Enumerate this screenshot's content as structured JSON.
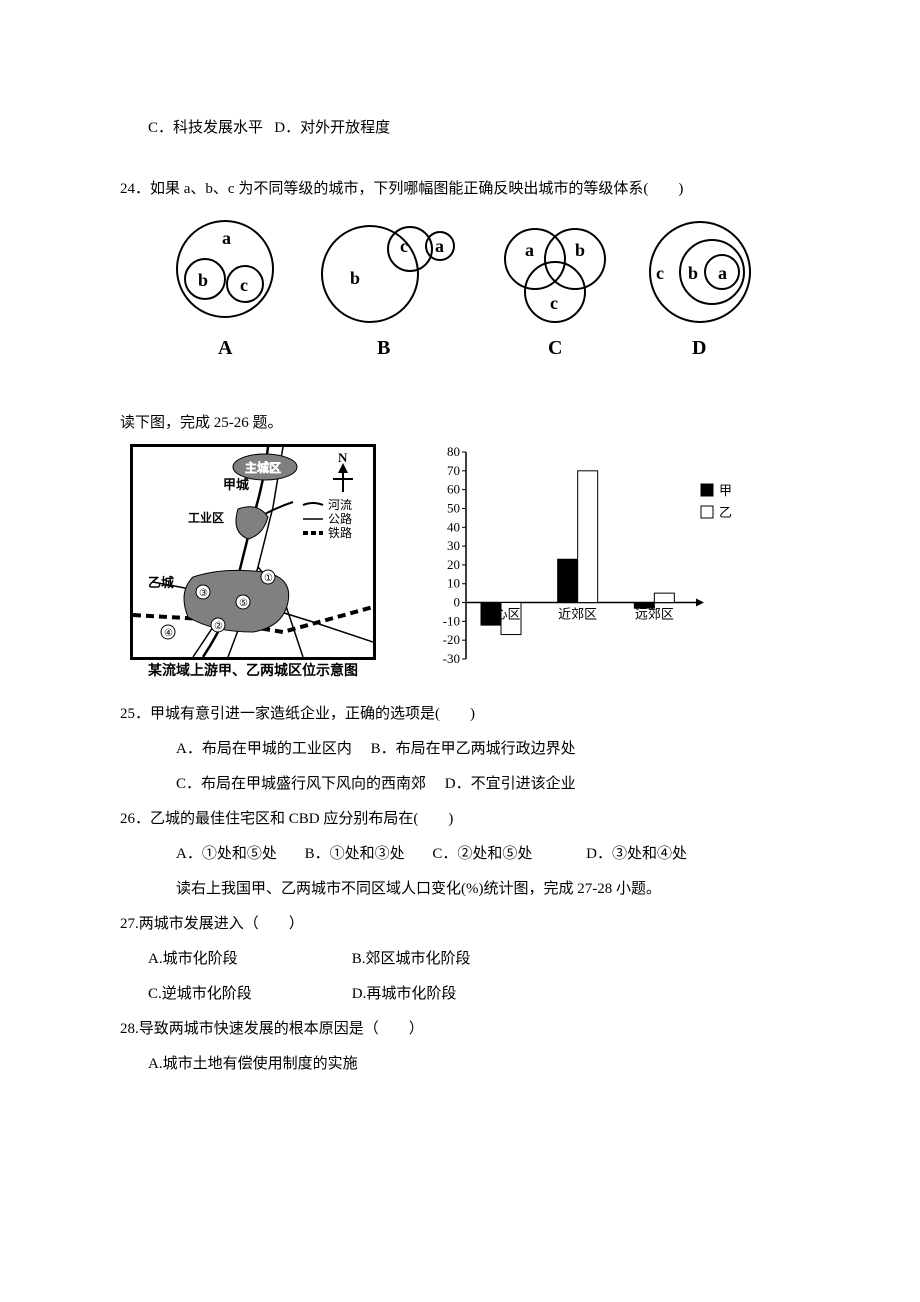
{
  "q23_tail": {
    "c": "C．科技发展水平",
    "d": "D．对外开放程度"
  },
  "q24": {
    "stem": "24．如果 a、b、c 为不同等级的城市，下列哪幅图能正确反映出城市的等级体系(　　)",
    "labels": {
      "A": "A",
      "B": "B",
      "C": "C",
      "D": "D"
    },
    "glyphs": {
      "a": "a",
      "b": "b",
      "c": "c"
    }
  },
  "intro25": "读下图，完成 25-26 题。",
  "map": {
    "main_area": "主城区",
    "city_jia": "甲城",
    "industrial": "工业区",
    "city_yi": "乙城",
    "north": "N",
    "legend": {
      "river": "河流",
      "road": "公路",
      "rail": "铁路"
    },
    "nodes": {
      "1": "①",
      "2": "②",
      "3": "③",
      "4": "④",
      "5": "⑤"
    },
    "caption": "某流域上游甲、乙两城区位示意图"
  },
  "chart": {
    "type": "bar",
    "categories": [
      "中心区",
      "近郊区",
      "远郊区"
    ],
    "series": [
      {
        "name": "甲",
        "values": [
          -12,
          23,
          -3
        ],
        "color": "#000000"
      },
      {
        "name": "乙",
        "values": [
          -17,
          70,
          5
        ],
        "color": "#ffffff"
      }
    ],
    "ylim": [
      -30,
      80
    ],
    "ytick_step": 10,
    "axis_color": "#000000",
    "bar_border": "#000000",
    "label_fontsize": 13,
    "legend": {
      "jia": "甲",
      "yi": "乙"
    }
  },
  "q25": {
    "stem": "25．甲城有意引进一家造纸企业，正确的选项是(　　)",
    "a": "A．布局在甲城的工业区内",
    "b": "B．布局在甲乙两城行政边界处",
    "c": "C．布局在甲城盛行风下风向的西南郊",
    "d": "D．不宜引进该企业"
  },
  "q26": {
    "stem": "26．乙城的最佳住宅区和 CBD 应分别布局在(　　)",
    "a": "A．①处和⑤处",
    "b": "B．①处和③处",
    "c": "C．②处和⑤处",
    "d": "D．③处和④处"
  },
  "intro27": "读右上我国甲、乙两城市不同区域人口变化(%)统计图，完成 27-28 小题。",
  "q27": {
    "stem": "27.两城市发展进入（　　）",
    "a": "A.城市化阶段",
    "b": "B.郊区城市化阶段",
    "c": "C.逆城市化阶段",
    "d": "D.再城市化阶段"
  },
  "q28": {
    "stem": "28.导致两城市快速发展的根本原因是（　　）",
    "a": "A.城市土地有偿使用制度的实施"
  }
}
